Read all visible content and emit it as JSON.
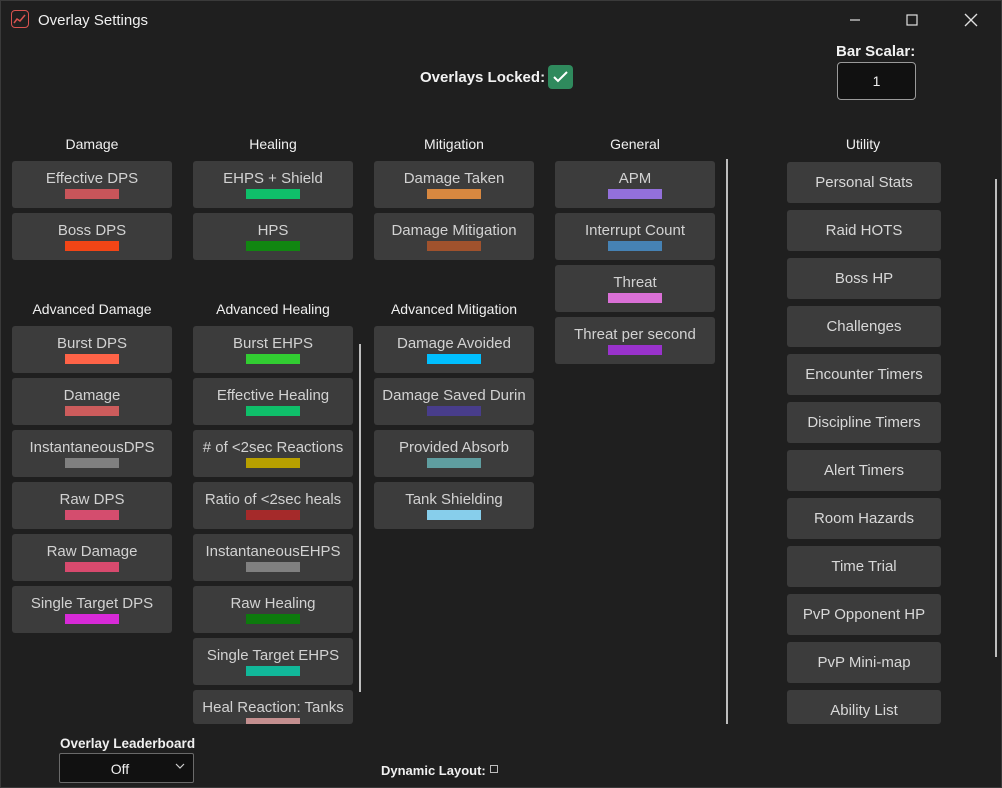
{
  "window": {
    "title": "Overlay Settings"
  },
  "overlays_locked": {
    "label": "Overlays Locked:",
    "checked": true
  },
  "bar_scalar": {
    "label": "Bar Scalar:",
    "value": "1"
  },
  "columns": {
    "damage": {
      "header": "Damage",
      "items": [
        {
          "label": "Effective DPS",
          "color": "#c8555a"
        },
        {
          "label": "Boss DPS",
          "color": "#f24516"
        }
      ]
    },
    "healing": {
      "header": "Healing",
      "items": [
        {
          "label": "EHPS + Shield",
          "color": "#0fbf6a"
        },
        {
          "label": "HPS",
          "color": "#118611"
        }
      ]
    },
    "mitigation": {
      "header": "Mitigation",
      "items": [
        {
          "label": "Damage Taken",
          "color": "#d88840"
        },
        {
          "label": "Damage Mitigation",
          "color": "#a0522d"
        }
      ]
    },
    "general": {
      "header": "General",
      "items": [
        {
          "label": "APM",
          "color": "#9370db"
        },
        {
          "label": "Interrupt Count",
          "color": "#4682b4"
        },
        {
          "label": "Threat",
          "color": "#da70d6"
        },
        {
          "label": "Threat per second",
          "color": "#9932cc"
        }
      ]
    },
    "advanced_damage": {
      "header": "Advanced Damage",
      "items": [
        {
          "label": "Burst DPS",
          "color": "#ff6347"
        },
        {
          "label": "Damage",
          "color": "#cd5c5c"
        },
        {
          "label": "InstantaneousDPS",
          "color": "#808080"
        },
        {
          "label": "Raw DPS",
          "color": "#d44d6e"
        },
        {
          "label": "Raw Damage",
          "color": "#d84a6e"
        },
        {
          "label": "Single Target DPS",
          "color": "#d82ad8"
        }
      ]
    },
    "advanced_healing": {
      "header": "Advanced Healing",
      "items": [
        {
          "label": "Burst EHPS",
          "color": "#32cd32"
        },
        {
          "label": "Effective Healing",
          "color": "#0fbf6a"
        },
        {
          "label": "# of <2sec Reactions",
          "color": "#b8a000"
        },
        {
          "label": "Ratio of <2sec heals",
          "color": "#a52a2a"
        },
        {
          "label": "InstantaneousEHPS",
          "color": "#808080"
        },
        {
          "label": "Raw Healing",
          "color": "#0d7a0d"
        },
        {
          "label": "Single Target EHPS",
          "color": "#11b89a"
        },
        {
          "label": "Heal Reaction: Tanks",
          "color": "#c48f8f"
        }
      ]
    },
    "advanced_mitigation": {
      "header": "Advanced Mitigation",
      "items": [
        {
          "label": "Damage Avoided",
          "color": "#00bfff"
        },
        {
          "label": "Damage Saved Durin",
          "color": "#483d8b"
        },
        {
          "label": "Provided Absorb",
          "color": "#5f9ea0"
        },
        {
          "label": "Tank Shielding",
          "color": "#87ceeb"
        }
      ]
    },
    "utility": {
      "header": "Utility",
      "items": [
        "Personal Stats",
        "Raid HOTS",
        "Boss HP",
        "Challenges",
        "Encounter Timers",
        "Discipline Timers",
        "Alert Timers",
        "Room Hazards",
        "Time Trial",
        "PvP Opponent HP",
        "PvP Mini-map",
        "Ability List"
      ]
    }
  },
  "leaderboard": {
    "label": "Overlay Leaderboard",
    "value": "Off"
  },
  "dynamic_layout": {
    "label": "Dynamic Layout:",
    "checked": false
  }
}
